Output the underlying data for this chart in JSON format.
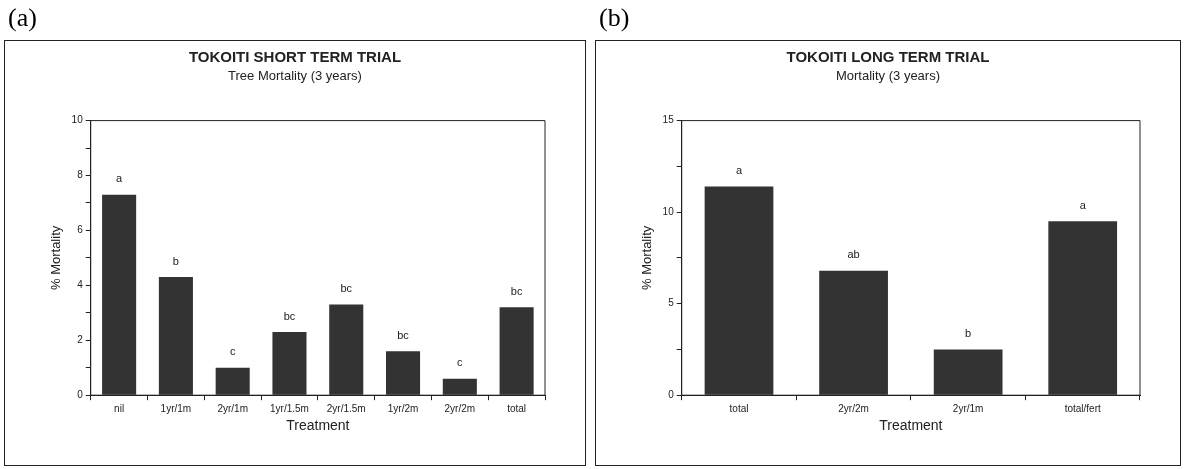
{
  "chart_data": [
    {
      "type": "bar",
      "title": "TOKOITI SHORT TERM TRIAL",
      "subtitle": "Tree Mortality (3 years)",
      "xlabel": "Treatment",
      "ylabel": "% Mortality",
      "categories": [
        "nil",
        "1yr/1m",
        "2yr/1m",
        "1yr/1.5m",
        "2yr/1.5m",
        "1yr/2m",
        "2yr/2m",
        "total"
      ],
      "values": [
        7.3,
        4.3,
        1.0,
        2.3,
        3.3,
        1.6,
        0.6,
        3.2
      ],
      "color": "#333333",
      "ylim": [
        0,
        10
      ],
      "yticks": [
        0,
        {
          "value": 1,
          "label": null
        },
        2,
        {
          "value": 3,
          "label": null
        },
        4,
        {
          "value": 5,
          "label": null
        },
        6,
        {
          "value": 7,
          "label": null
        },
        8,
        {
          "value": 9,
          "label": null
        },
        10
      ],
      "grid": false,
      "annotations": [
        "(a)",
        {
          "text": "a",
          "x": "nil",
          "y": 7.3
        },
        {
          "text": "b",
          "x": "1yr/1m",
          "y": 4.3
        },
        {
          "text": "c",
          "x": "2yr/1m",
          "y": 1.0
        },
        {
          "text": "bc",
          "x": "1yr/1.5m",
          "y": 2.3
        },
        {
          "text": "bc",
          "x": "2yr/1.5m",
          "y": 3.3
        },
        {
          "text": "bc",
          "x": "1yr/2m",
          "y": 1.6
        },
        {
          "text": "c",
          "x": "2yr/2m",
          "y": 0.6
        },
        {
          "text": "bc",
          "x": "total",
          "y": 3.2
        }
      ]
    },
    {
      "type": "bar",
      "title": "TOKOITI LONG TERM TRIAL",
      "subtitle": "Mortality (3 years)",
      "xlabel": "Treatment",
      "ylabel": "% Mortality",
      "categories": [
        "total",
        "2yr/2m",
        "2yr/1m",
        "total/fert"
      ],
      "values": [
        11.4,
        6.8,
        2.5,
        9.5
      ],
      "color": "#333333",
      "ylim": [
        0,
        15
      ],
      "yticks": [
        0,
        {
          "value": 2.5,
          "label": null
        },
        5,
        {
          "value": 7.5,
          "label": null
        },
        10,
        {
          "value": 12.5,
          "label": null
        },
        15
      ],
      "grid": false,
      "annotations": [
        "(b)",
        {
          "text": "a",
          "x": "total",
          "y": 11.4
        },
        {
          "text": "ab",
          "x": "2yr/2m",
          "y": 6.8
        },
        {
          "text": "b",
          "x": "2yr/1m",
          "y": 2.5
        },
        {
          "text": "a",
          "x": "total/fert",
          "y": 9.5
        }
      ]
    }
  ]
}
